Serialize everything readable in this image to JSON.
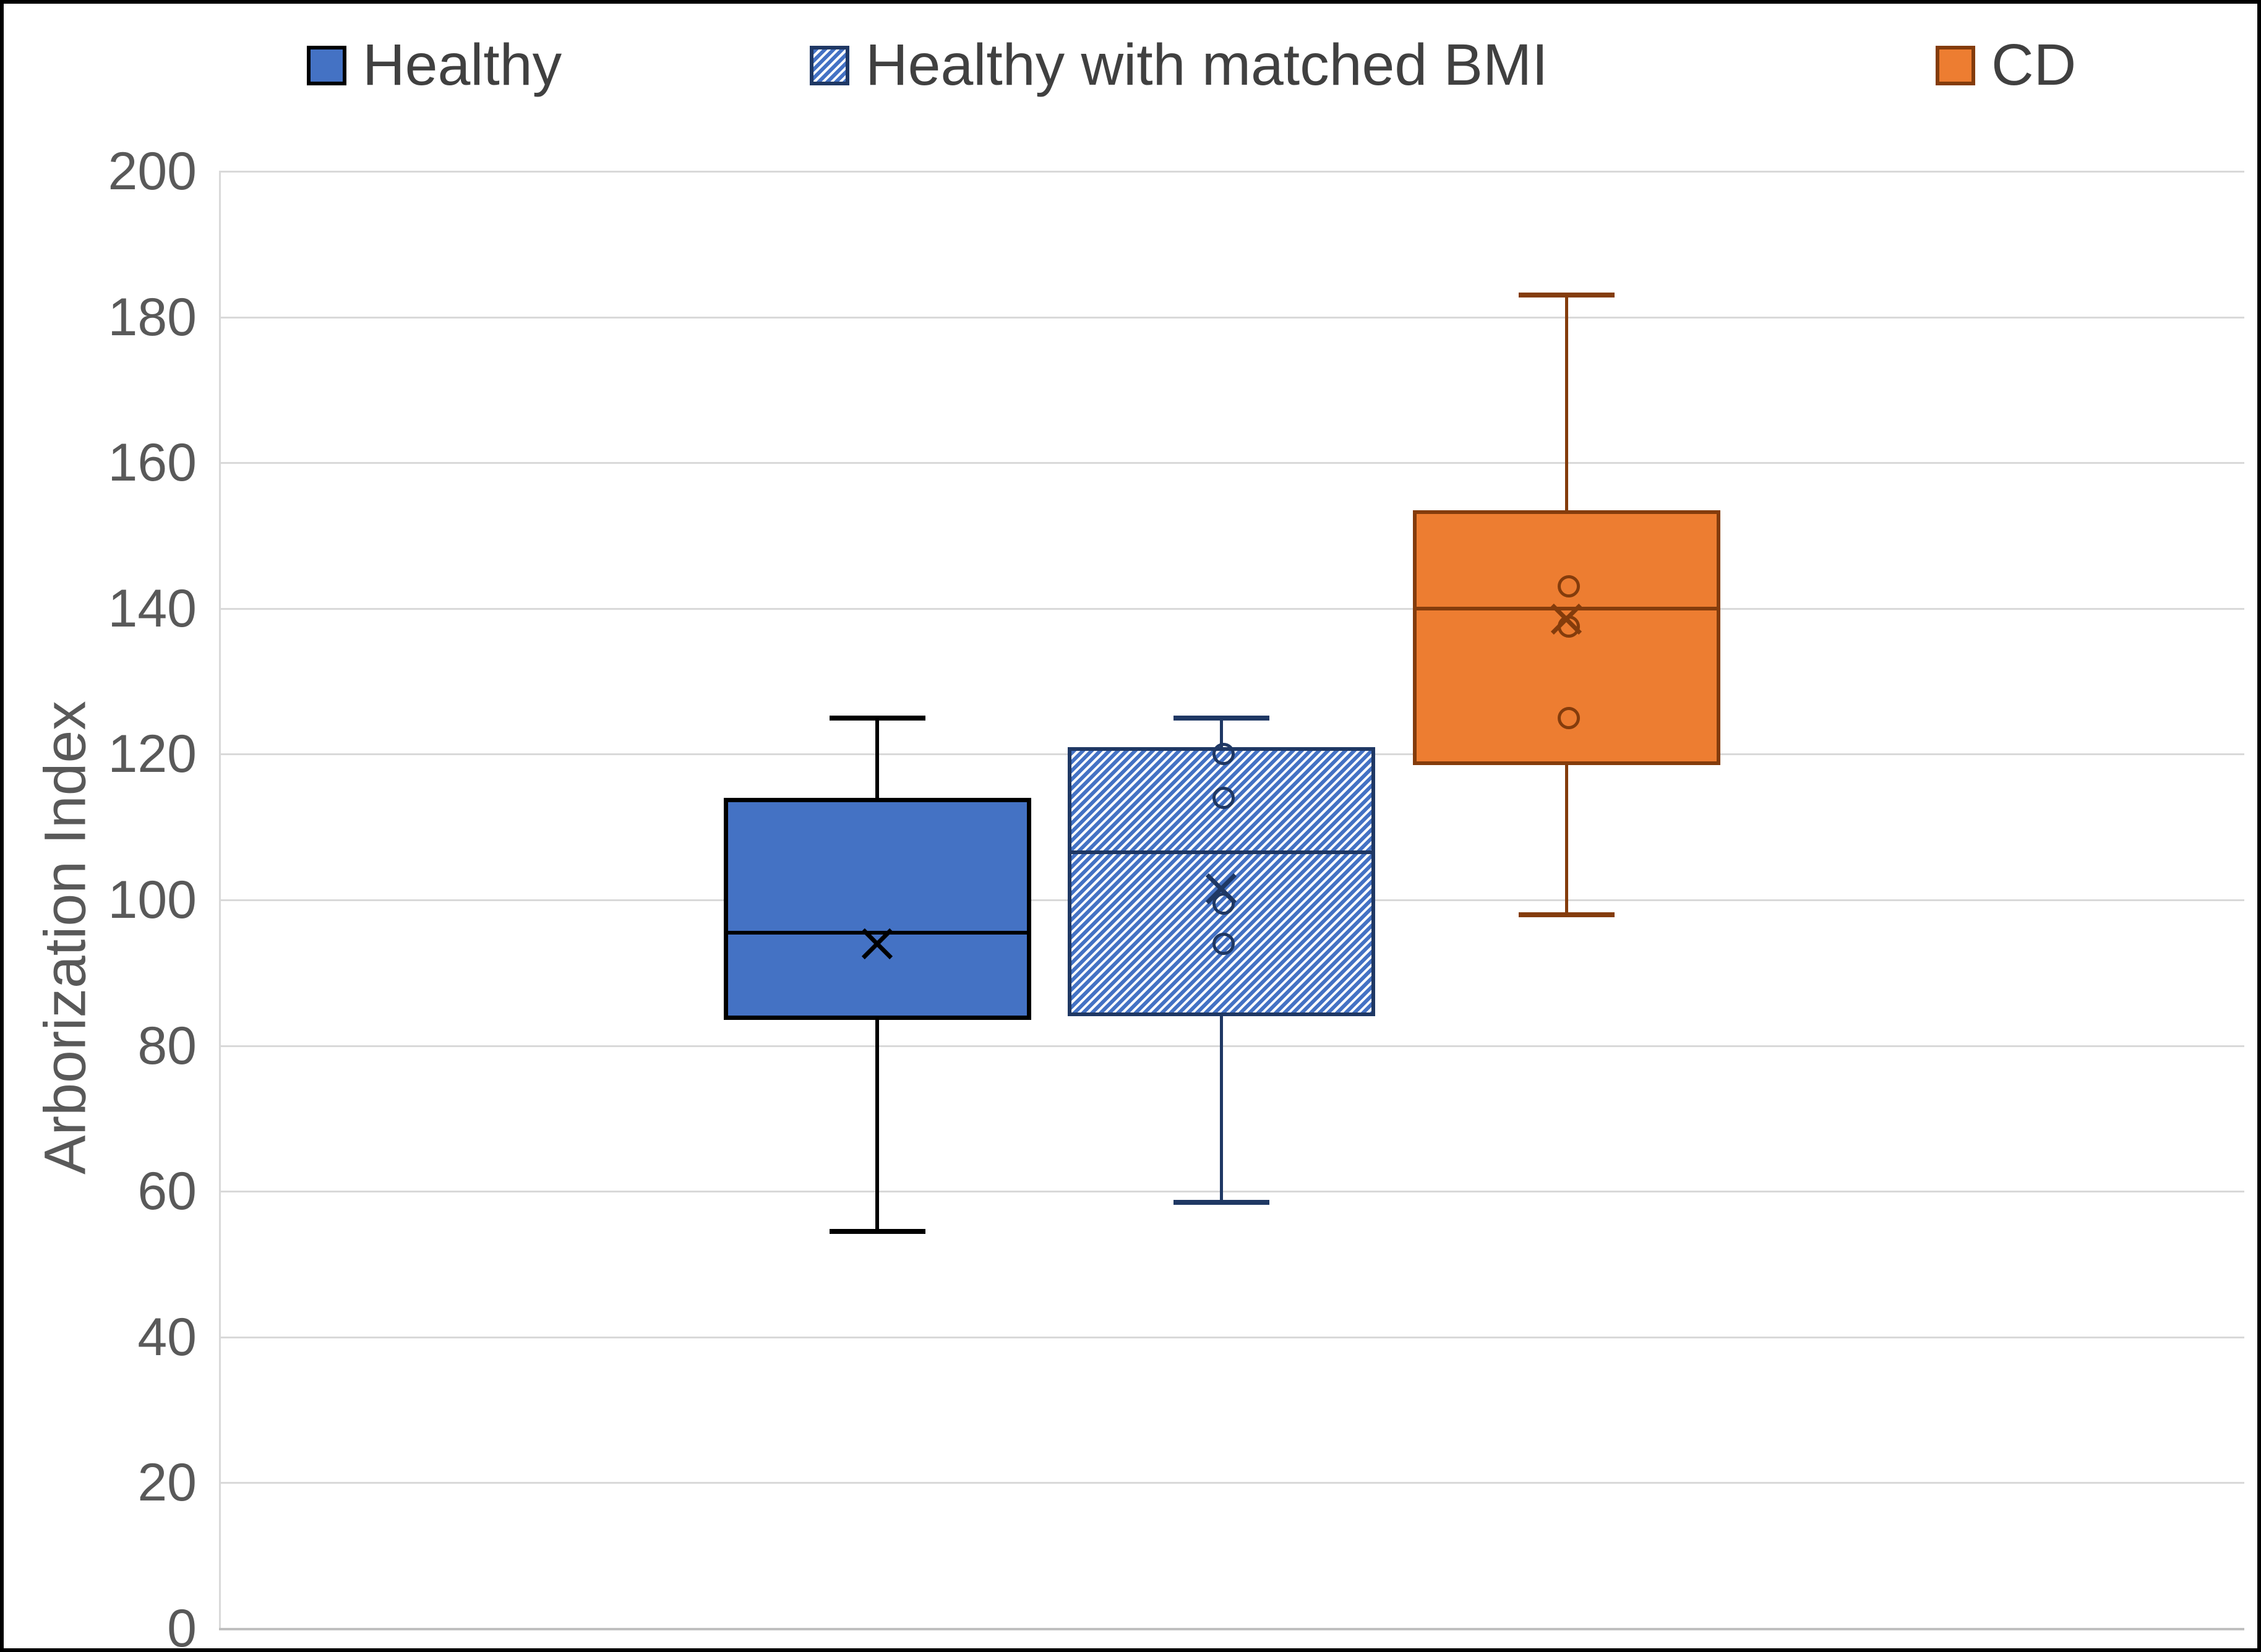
{
  "chart_data": {
    "type": "box",
    "title": "",
    "xlabel": "",
    "ylabel": "Arborization Index",
    "ylim": [
      0,
      200
    ],
    "ytick_step": 20,
    "yticks": [
      200,
      180,
      160,
      140,
      120,
      100,
      80,
      60,
      40,
      20,
      0
    ],
    "grid": true,
    "legend_position": "top",
    "series": [
      {
        "name": "Healthy",
        "slug": "healthy",
        "style": "solid",
        "fill": "#4472C4",
        "edge": "#000000",
        "whisker_low": 54.5,
        "q1": 83.5,
        "median": 95.5,
        "q3": 114,
        "whisker_high": 125,
        "mean": 94,
        "points": []
      },
      {
        "name": "Healthy with matched BMI",
        "slug": "healthy-with-matched-bmi",
        "style": "hatched",
        "fill": "#FFFFFF",
        "hatch_color": "#4472C4",
        "edge": "#1F3864",
        "whisker_low": 58.5,
        "q1": 84,
        "median": 106.5,
        "q3": 121,
        "whisker_high": 125,
        "mean": 101.5,
        "points": [
          120,
          114,
          99.5,
          94
        ]
      },
      {
        "name": "CD",
        "slug": "cd",
        "style": "solid",
        "fill": "#ED7D31",
        "edge": "#843C0C",
        "whisker_low": 98,
        "q1": 118.5,
        "median": 140,
        "q3": 153.5,
        "whisker_high": 183,
        "mean": 138.5,
        "points": [
          143,
          137.5,
          125
        ]
      }
    ],
    "colors": {
      "gridline": "#D9D9D9",
      "axis_line": "#BFBFBF",
      "tick_text": "#595959",
      "axis_title_text": "#595959",
      "legend_text": "#404040",
      "frame_border": "#000000"
    }
  }
}
